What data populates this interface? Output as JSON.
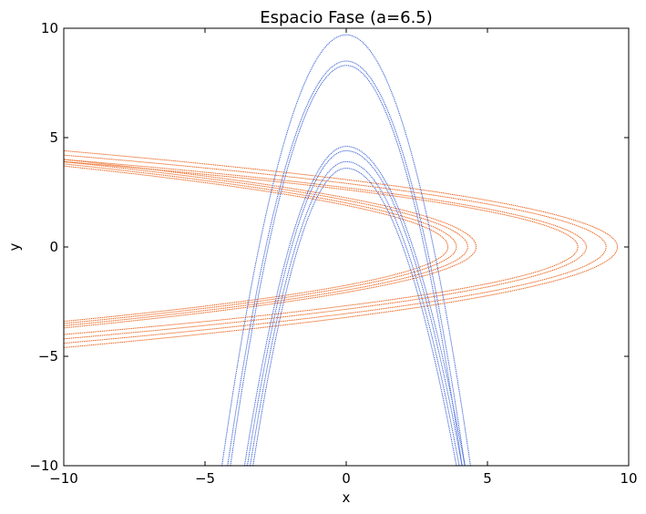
{
  "chart_data": {
    "type": "scatter",
    "title": "Espacio Fase (a=6.5)",
    "xlabel": "x",
    "ylabel": "y",
    "xlim": [
      -10,
      10
    ],
    "ylim": [
      -10,
      10
    ],
    "xticks": [
      -10,
      -5,
      0,
      5,
      10
    ],
    "yticks": [
      -10,
      -5,
      0,
      5,
      10
    ],
    "xtick_labels": [
      "−10",
      "−5",
      "0",
      "5",
      "10"
    ],
    "ytick_labels": [
      "−10",
      "−5",
      "0",
      "5",
      "10"
    ],
    "grid": false,
    "legend": "none",
    "series": [
      {
        "color": "#e8590c",
        "curves": [
          {
            "vertex": [
              9.6,
              0.0
            ],
            "yspan": [
              -4.6,
              4.4
            ]
          },
          {
            "vertex": [
              9.2,
              0.0
            ],
            "yspan": [
              -4.4,
              4.2
            ]
          },
          {
            "vertex": [
              8.5,
              0.0
            ],
            "yspan": [
              -4.2,
              4.0
            ]
          },
          {
            "vertex": [
              8.2,
              0.0
            ],
            "yspan": [
              -4.0,
              3.9
            ]
          },
          {
            "vertex": [
              4.6,
              0.0
            ],
            "yspan": [
              -3.7,
              4.0
            ]
          },
          {
            "vertex": [
              4.3,
              0.0
            ],
            "yspan": [
              -3.6,
              3.9
            ]
          },
          {
            "vertex": [
              3.9,
              0.0
            ],
            "yspan": [
              -3.5,
              3.8
            ]
          },
          {
            "vertex": [
              3.6,
              0.0
            ],
            "yspan": [
              -3.4,
              3.7
            ]
          }
        ]
      },
      {
        "color": "#3d63d6",
        "curves": [
          {
            "vertex": [
              0.0,
              9.7
            ],
            "xspan": [
              -4.4,
              4.4
            ]
          },
          {
            "vertex": [
              0.0,
              8.5
            ],
            "xspan": [
              -4.2,
              4.2
            ]
          },
          {
            "vertex": [
              0.0,
              8.3
            ],
            "xspan": [
              -4.1,
              4.1
            ]
          },
          {
            "vertex": [
              0.0,
              4.6
            ],
            "xspan": [
              -3.6,
              4.2
            ]
          },
          {
            "vertex": [
              0.0,
              4.4
            ],
            "xspan": [
              -3.5,
              4.1
            ]
          },
          {
            "vertex": [
              0.0,
              3.9
            ],
            "xspan": [
              -3.4,
              4.0
            ]
          },
          {
            "vertex": [
              0.0,
              3.6
            ],
            "xspan": [
              -3.3,
              3.9
            ]
          }
        ]
      }
    ]
  }
}
